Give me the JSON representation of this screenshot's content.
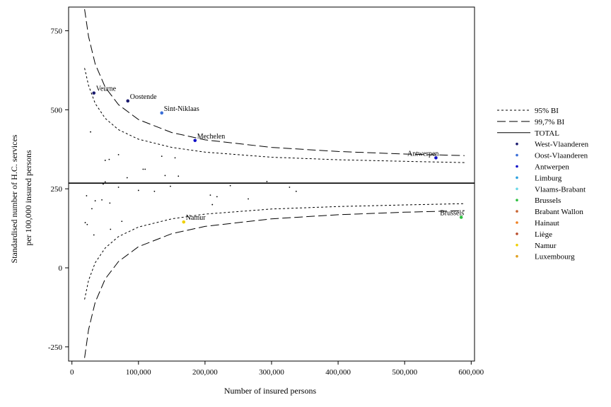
{
  "chart_data": {
    "type": "scatter",
    "xlabel": "Number of insured persons",
    "ylabel": "Standardised number of H.C. services per 100,000 insured persons",
    "ylabel_lines": [
      "Standardised number of H.C. services",
      "per 100,000 insured persons"
    ],
    "xlim": [
      -5000,
      605000
    ],
    "ylim": [
      -295,
      825
    ],
    "x_ticks": [
      0,
      100000,
      200000,
      300000,
      400000,
      500000,
      600000
    ],
    "x_tick_labels": [
      "0",
      "100,000",
      "200,000",
      "300,000",
      "400,000",
      "500,000",
      "600,000"
    ],
    "y_ticks": [
      -250,
      0,
      250,
      500,
      750
    ],
    "y_tick_labels": [
      "-250",
      "0",
      "250",
      "500",
      "750"
    ],
    "total_rate": 268,
    "legend_placement": "right",
    "legend": [
      {
        "label": "95% BI",
        "kind": "short-dash"
      },
      {
        "label": "99,7% BI",
        "kind": "long-dash"
      },
      {
        "label": "TOTAL",
        "kind": "solid"
      },
      {
        "label": "West-Vlaanderen",
        "kind": "dot",
        "color": "#1a1a6e"
      },
      {
        "label": "Oost-Vlaanderen",
        "kind": "dot",
        "color": "#3a6fd8"
      },
      {
        "label": "Antwerpen",
        "kind": "dot",
        "color": "#1010c8"
      },
      {
        "label": "Limburg",
        "kind": "dot",
        "color": "#2aa0e0"
      },
      {
        "label": "Vlaams-Brabant",
        "kind": "dot",
        "color": "#6ad8e8"
      },
      {
        "label": "Brussels",
        "kind": "dot",
        "color": "#2ec040"
      },
      {
        "label": "Brabant Wallon",
        "kind": "dot",
        "color": "#c86430"
      },
      {
        "label": "Hainaut",
        "kind": "dot",
        "color": "#f08020"
      },
      {
        "label": "Liège",
        "kind": "dot",
        "color": "#b84a2a"
      },
      {
        "label": "Namur",
        "kind": "dot",
        "color": "#f0d000"
      },
      {
        "label": "Luxembourg",
        "kind": "dot",
        "color": "#e0a020"
      }
    ],
    "labeled_points": [
      {
        "label": "Veurne",
        "x": 33000,
        "y": 553,
        "color": "#1a1a6e"
      },
      {
        "label": "Oostende",
        "x": 84000,
        "y": 528,
        "color": "#1a1a6e"
      },
      {
        "label": "Sint-Niklaas",
        "x": 135000,
        "y": 490,
        "color": "#3a6fd8"
      },
      {
        "label": "Mechelen",
        "x": 185000,
        "y": 403,
        "color": "#1010c8"
      },
      {
        "label": "Antwerpen",
        "x": 547000,
        "y": 348,
        "color": "#1010c8"
      },
      {
        "label": "Brussels",
        "x": 585000,
        "y": 160,
        "color": "#2ec040"
      },
      {
        "label": "Namur",
        "x": 168000,
        "y": 145,
        "color": "#f0d000"
      }
    ],
    "points": [
      {
        "x": 28000,
        "y": 430
      },
      {
        "x": 70000,
        "y": 358
      },
      {
        "x": 56000,
        "y": 343
      },
      {
        "x": 50000,
        "y": 340
      },
      {
        "x": 135000,
        "y": 353
      },
      {
        "x": 155000,
        "y": 348
      },
      {
        "x": 107000,
        "y": 312
      },
      {
        "x": 110000,
        "y": 312
      },
      {
        "x": 140000,
        "y": 292
      },
      {
        "x": 160000,
        "y": 290
      },
      {
        "x": 83000,
        "y": 285
      },
      {
        "x": 50000,
        "y": 272
      },
      {
        "x": 293000,
        "y": 273
      },
      {
        "x": 47000,
        "y": 265
      },
      {
        "x": 70000,
        "y": 255
      },
      {
        "x": 148000,
        "y": 258
      },
      {
        "x": 238000,
        "y": 260
      },
      {
        "x": 327000,
        "y": 255
      },
      {
        "x": 100000,
        "y": 245
      },
      {
        "x": 124000,
        "y": 242
      },
      {
        "x": 337000,
        "y": 242
      },
      {
        "x": 208000,
        "y": 230
      },
      {
        "x": 218000,
        "y": 225
      },
      {
        "x": 22000,
        "y": 228
      },
      {
        "x": 265000,
        "y": 218
      },
      {
        "x": 35000,
        "y": 212
      },
      {
        "x": 45000,
        "y": 215
      },
      {
        "x": 57000,
        "y": 205
      },
      {
        "x": 211000,
        "y": 200
      },
      {
        "x": 30000,
        "y": 187
      },
      {
        "x": 20000,
        "y": 143
      },
      {
        "x": 23000,
        "y": 137
      },
      {
        "x": 75000,
        "y": 147
      },
      {
        "x": 58000,
        "y": 122
      },
      {
        "x": 33000,
        "y": 104
      }
    ],
    "control_limits": {
      "x": [
        19000,
        25000,
        35000,
        50000,
        70000,
        100000,
        150000,
        200000,
        300000,
        400000,
        500000,
        590000
      ],
      "upper_997": [
        818,
        732,
        645,
        571,
        516,
        469,
        428,
        405,
        381,
        368,
        360,
        355
      ],
      "upper_95": [
        632,
        577,
        520,
        473,
        437,
        407,
        381,
        366,
        350,
        342,
        337,
        333
      ],
      "lower_95": [
        -100,
        -40,
        16,
        63,
        99,
        129,
        155,
        170,
        186,
        194,
        199,
        203
      ],
      "lower_997": [
        -285,
        -196,
        -109,
        -35,
        20,
        67,
        108,
        131,
        155,
        168,
        176,
        181
      ]
    }
  }
}
